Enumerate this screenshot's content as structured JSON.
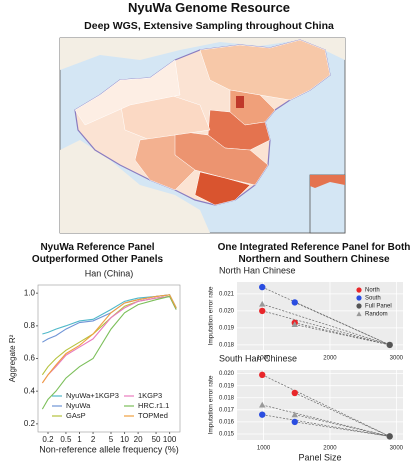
{
  "title": "NyuWa Genome Resource",
  "subtitle": "Deep WGS, Extensive Sampling throughout China",
  "panels": {
    "left_title": "NyuWa Reference Panel Outperformed Other Panels",
    "right_title": "One Integrated Reference Panel for Both Northern and Southern Chinese"
  },
  "chart_data": [
    {
      "type": "line",
      "title": "Han (China)",
      "xlabel": "Non-reference allele frequency (%)",
      "ylabel": "Aggregate R²",
      "xscale": "log",
      "xlim": [
        0.12,
        170
      ],
      "ylim": [
        0.15,
        1.05
      ],
      "xticks": [
        0.2,
        0.5,
        1,
        2,
        5,
        10,
        20,
        50,
        100
      ],
      "yticks": [
        0.2,
        0.4,
        0.6,
        0.8,
        {
          "value": 1,
          "label": "1.0"
        }
      ],
      "x": [
        0.15,
        0.2,
        0.3,
        0.5,
        1,
        2,
        5,
        10,
        20,
        50,
        100,
        140
      ],
      "legend": "lower right",
      "series": [
        {
          "name": "NyuWa+1KGP3",
          "color": "#4fb8c9",
          "values": [
            0.75,
            0.76,
            0.78,
            0.8,
            0.83,
            0.84,
            0.9,
            0.95,
            0.97,
            0.98,
            0.99,
            0.91
          ]
        },
        {
          "name": "NyuWa",
          "color": "#6f94d6",
          "values": [
            0.7,
            0.72,
            0.74,
            0.78,
            0.82,
            0.83,
            0.88,
            0.94,
            0.96,
            0.98,
            0.99,
            0.91
          ]
        },
        {
          "name": "GAsP",
          "color": "#b5c23c",
          "values": [
            0.5,
            0.55,
            0.6,
            0.65,
            0.7,
            0.75,
            0.85,
            0.92,
            0.95,
            0.97,
            0.98,
            0.9
          ]
        },
        {
          "name": "1KGP3",
          "color": "#e87bbf",
          "values": [
            0.45,
            0.5,
            0.55,
            0.62,
            0.67,
            0.72,
            0.85,
            0.91,
            0.95,
            0.97,
            0.98,
            0.9
          ]
        },
        {
          "name": "HRC.r1.1",
          "color": "#7cbf5a",
          "values": [
            0.29,
            0.35,
            0.4,
            0.48,
            0.55,
            0.6,
            0.78,
            0.88,
            0.93,
            0.96,
            0.98,
            0.9
          ]
        },
        {
          "name": "TOPMed",
          "color": "#f0a040",
          "values": [
            0.45,
            0.5,
            0.56,
            0.63,
            0.68,
            0.75,
            0.88,
            0.94,
            0.96,
            0.98,
            0.99,
            0.91
          ]
        }
      ]
    },
    {
      "type": "scatter",
      "title": "North Han Chinese",
      "ylabel": "Imputation error rate",
      "xlim": [
        600,
        3100
      ],
      "ylim": [
        0.0177,
        0.0217
      ],
      "xticks": [
        1000,
        2000,
        3000
      ],
      "yticks": [
        0.018,
        0.019,
        {
          "value": 0.02,
          "label": "0.020"
        },
        0.021
      ],
      "legend": "upper right",
      "series": [
        {
          "name": "North",
          "color": "#e8262a",
          "marker": "circle",
          "x": [
            980,
            1470
          ],
          "values": [
            0.02,
            0.0193
          ]
        },
        {
          "name": "South",
          "color": "#2a4de0",
          "marker": "circle",
          "x": [
            980,
            1470
          ],
          "values": [
            0.0214,
            0.0205
          ]
        },
        {
          "name": "Full Panel",
          "color": "#555555",
          "marker": "circle",
          "x": [
            2900
          ],
          "values": [
            0.018
          ]
        },
        {
          "name": "Random",
          "color": "#999999",
          "marker": "triangle",
          "x": [
            980,
            1470
          ],
          "values": [
            0.0204,
            0.0192
          ]
        }
      ]
    },
    {
      "type": "scatter",
      "title": "South Han Chinese",
      "ylabel": "Imputation error rate",
      "xlabel": "Panel Size",
      "xlim": [
        600,
        3100
      ],
      "ylim": [
        0.0145,
        0.0203
      ],
      "xticks": [
        1000,
        2000,
        3000
      ],
      "yticks": [
        0.015,
        0.016,
        0.017,
        0.018,
        0.019,
        {
          "value": 0.02,
          "label": "0.020"
        }
      ],
      "series": [
        {
          "name": "North",
          "color": "#e8262a",
          "marker": "circle",
          "x": [
            980,
            1470
          ],
          "values": [
            0.0199,
            0.0184
          ]
        },
        {
          "name": "South",
          "color": "#2a4de0",
          "marker": "circle",
          "x": [
            980,
            1470
          ],
          "values": [
            0.0166,
            0.016
          ]
        },
        {
          "name": "Full Panel",
          "color": "#555555",
          "marker": "circle",
          "x": [
            2900
          ],
          "values": [
            0.0148
          ]
        },
        {
          "name": "Random",
          "color": "#999999",
          "marker": "triangle",
          "x": [
            980,
            1470
          ],
          "values": [
            0.0174,
            0.0166
          ]
        }
      ]
    }
  ]
}
